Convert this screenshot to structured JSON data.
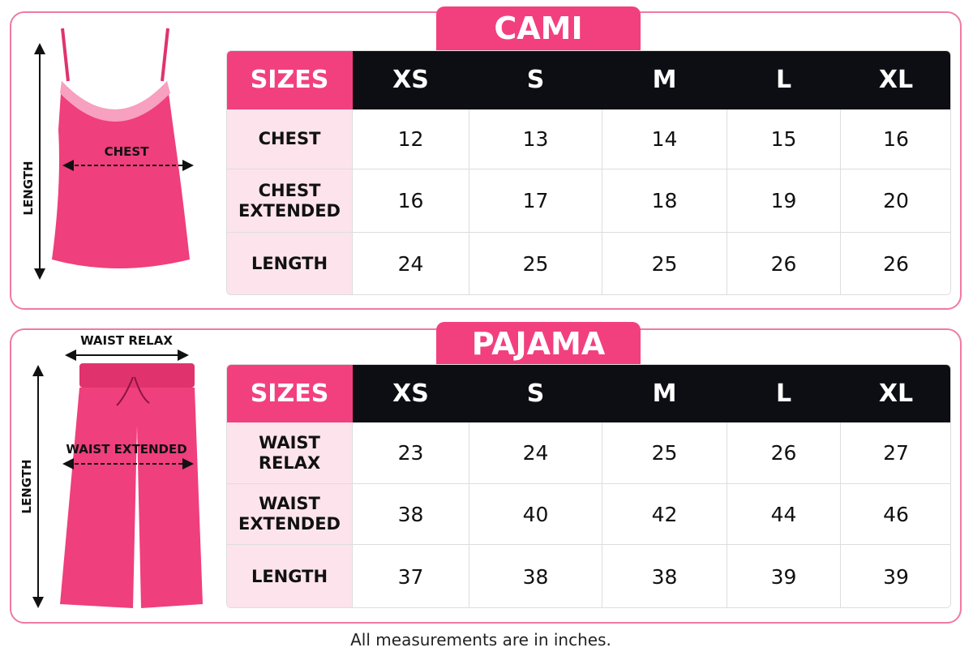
{
  "sections": [
    {
      "title": "CAMI",
      "figure": {
        "length_label": "LENGTH",
        "width_label": "CHEST"
      },
      "table": {
        "header": [
          "SIZES",
          "XS",
          "S",
          "M",
          "L",
          "XL"
        ],
        "rows": [
          [
            "CHEST",
            "12",
            "13",
            "14",
            "15",
            "16"
          ],
          [
            "CHEST EXTENDED",
            "16",
            "17",
            "18",
            "19",
            "20"
          ],
          [
            "LENGTH",
            "24",
            "25",
            "25",
            "26",
            "26"
          ]
        ]
      }
    },
    {
      "title": "PAJAMA",
      "figure": {
        "length_label": "LENGTH",
        "top_label": "WAIST RELAX",
        "width_label": "WAIST EXTENDED"
      },
      "table": {
        "header": [
          "SIZES",
          "XS",
          "S",
          "M",
          "L",
          "XL"
        ],
        "rows": [
          [
            "WAIST RELAX",
            "23",
            "24",
            "25",
            "26",
            "27"
          ],
          [
            "WAIST EXTENDED",
            "38",
            "40",
            "42",
            "44",
            "46"
          ],
          [
            "LENGTH",
            "37",
            "38",
            "38",
            "39",
            "39"
          ]
        ]
      }
    }
  ],
  "footnote": "All measurements are in inches."
}
